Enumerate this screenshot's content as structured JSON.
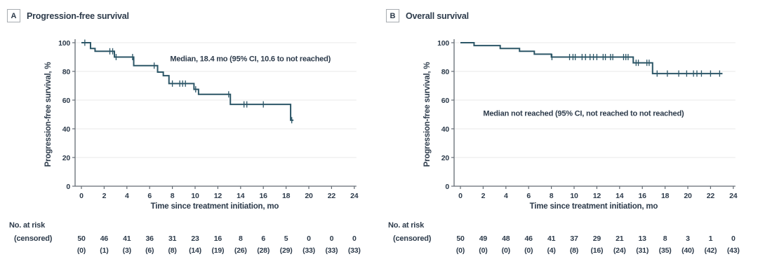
{
  "colors": {
    "ink": "#2d3b4b",
    "curve": "#2c5667",
    "axis": "#646c74",
    "grid": "#ededed",
    "badge_border": "#a9aeb2",
    "background": "#ffffff"
  },
  "chart_data": [
    {
      "type": "line",
      "subtype": "kaplan-meier-step",
      "panel": "A",
      "title": "Progression-free survival",
      "xlabel": "Time since treatment initiation, mo",
      "ylabel": "Progression-free survival, %",
      "xlim": [
        0,
        24
      ],
      "ylim": [
        0,
        100
      ],
      "xticks": [
        0,
        2,
        4,
        6,
        8,
        10,
        12,
        14,
        16,
        18,
        20,
        22,
        24
      ],
      "yticks": [
        0,
        20,
        40,
        60,
        80,
        100
      ],
      "grid": "horizontal",
      "legend": "none",
      "annotation": {
        "text": "Median, 18.4 mo (95% CI, 10.6 to not reached)",
        "x_mo": 7.8,
        "pct": 87
      },
      "steps": [
        [
          0,
          100
        ],
        [
          0.8,
          96
        ],
        [
          1.2,
          94
        ],
        [
          2.9,
          90
        ],
        [
          4.6,
          84
        ],
        [
          6.7,
          79.5
        ],
        [
          7.2,
          77
        ],
        [
          7.7,
          71.5
        ],
        [
          9.9,
          67.5
        ],
        [
          10.3,
          64
        ],
        [
          13.1,
          57
        ],
        [
          18.4,
          46
        ]
      ],
      "end_month": 18.65,
      "censor_marks": [
        [
          0.3,
          100
        ],
        [
          2.5,
          94
        ],
        [
          2.75,
          94
        ],
        [
          3.05,
          90
        ],
        [
          4.5,
          90
        ],
        [
          6.4,
          84
        ],
        [
          8.0,
          71.5
        ],
        [
          8.65,
          71.5
        ],
        [
          8.9,
          71.5
        ],
        [
          9.15,
          71.5
        ],
        [
          10.05,
          67.5
        ],
        [
          12.95,
          64
        ],
        [
          14.3,
          57
        ],
        [
          14.55,
          57
        ],
        [
          16.0,
          57
        ],
        [
          18.5,
          46
        ]
      ],
      "risk_table": {
        "row_labels": [
          "No. at risk",
          "(censored)"
        ],
        "months": [
          0,
          2,
          4,
          6,
          8,
          10,
          12,
          14,
          16,
          18,
          20,
          22,
          24
        ],
        "at_risk": [
          "50",
          "46",
          "41",
          "36",
          "31",
          "23",
          "16",
          "8",
          "6",
          "5",
          "0",
          "0",
          "0"
        ],
        "censored": [
          "(0)",
          "(1)",
          "(3)",
          "(6)",
          "(8)",
          "(14)",
          "(19)",
          "(26)",
          "(28)",
          "(29)",
          "(33)",
          "(33)",
          "(33)"
        ]
      }
    },
    {
      "type": "line",
      "subtype": "kaplan-meier-step",
      "panel": "B",
      "title": "Overall survival",
      "xlabel": "Time since treatment initiation, mo",
      "ylabel": "Progression-free survival, %",
      "xlim": [
        0,
        24
      ],
      "ylim": [
        0,
        100
      ],
      "xticks": [
        0,
        2,
        4,
        6,
        8,
        10,
        12,
        14,
        16,
        18,
        20,
        22,
        24
      ],
      "yticks": [
        0,
        20,
        40,
        60,
        80,
        100
      ],
      "grid": "horizontal",
      "legend": "none",
      "annotation": {
        "text": "Median not reached (95% CI, not reached to not reached)",
        "x_mo": 2.0,
        "pct": 49
      },
      "steps": [
        [
          0,
          100
        ],
        [
          1.2,
          98
        ],
        [
          3.5,
          96
        ],
        [
          5.2,
          94
        ],
        [
          6.5,
          92
        ],
        [
          8.0,
          90
        ],
        [
          15.2,
          86
        ],
        [
          16.9,
          78.5
        ]
      ],
      "end_month": 23.05,
      "censor_marks": [
        [
          8.05,
          90
        ],
        [
          9.6,
          90
        ],
        [
          9.9,
          90
        ],
        [
          10.1,
          90
        ],
        [
          10.7,
          90
        ],
        [
          11.0,
          90
        ],
        [
          11.4,
          90
        ],
        [
          11.7,
          90
        ],
        [
          12.0,
          90
        ],
        [
          12.55,
          90
        ],
        [
          12.75,
          90
        ],
        [
          13.2,
          90
        ],
        [
          13.4,
          90
        ],
        [
          14.35,
          90
        ],
        [
          14.55,
          90
        ],
        [
          14.75,
          90
        ],
        [
          15.45,
          86
        ],
        [
          15.65,
          86
        ],
        [
          16.4,
          86
        ],
        [
          16.6,
          86
        ],
        [
          17.3,
          78.5
        ],
        [
          18.2,
          78.5
        ],
        [
          19.2,
          78.5
        ],
        [
          19.9,
          78.5
        ],
        [
          20.5,
          78.5
        ],
        [
          20.8,
          78.5
        ],
        [
          21.2,
          78.5
        ],
        [
          22.0,
          78.5
        ],
        [
          22.8,
          78.5
        ]
      ],
      "risk_table": {
        "row_labels": [
          "No. at risk",
          "(censored)"
        ],
        "months": [
          0,
          2,
          4,
          6,
          8,
          10,
          12,
          14,
          16,
          18,
          20,
          22,
          24
        ],
        "at_risk": [
          "50",
          "49",
          "48",
          "46",
          "41",
          "37",
          "29",
          "21",
          "13",
          "8",
          "3",
          "1",
          "0"
        ],
        "censored": [
          "(0)",
          "(0)",
          "(0)",
          "(0)",
          "(4)",
          "(8)",
          "(16)",
          "(24)",
          "(31)",
          "(35)",
          "(40)",
          "(42)",
          "(43)"
        ]
      }
    }
  ]
}
